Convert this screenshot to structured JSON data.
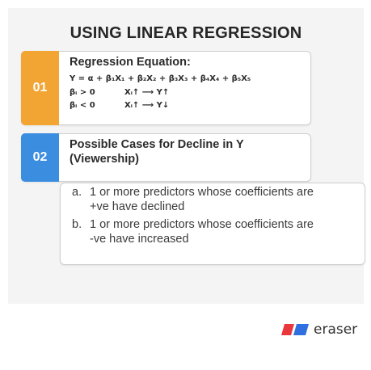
{
  "slide": {
    "title": "USING LINEAR REGRESSION",
    "section1": {
      "number": "01",
      "heading": "Regression Equation:",
      "equation": "Y = α + β₁X₁ + β₂X₂ + β₃X₃ + β₄X₄ + β₅X₅",
      "rule_positive_left": "βᵢ > 0",
      "rule_positive_right": "Xᵢ↑ ⟶ Y↑",
      "rule_negative_left": "βᵢ < 0",
      "rule_negative_right": "Xᵢ↑ ⟶ Y↓"
    },
    "section2": {
      "number": "02",
      "heading_line1": "Possible Cases for Decline in Y",
      "heading_line2": "(Viewership)",
      "items": [
        {
          "marker": "a.",
          "line1": "1 or more predictors whose coefficients are",
          "line2": "+ve have declined"
        },
        {
          "marker": "b.",
          "line1": "1 or more predictors whose coefficients are",
          "line2": "-ve have increased"
        }
      ]
    }
  },
  "brand": {
    "name": "eraser",
    "colors": {
      "red": "#e8383d",
      "blue": "#2f6fe0"
    }
  },
  "colors": {
    "badge1": "#f2a533",
    "badge2": "#3b8de0"
  }
}
